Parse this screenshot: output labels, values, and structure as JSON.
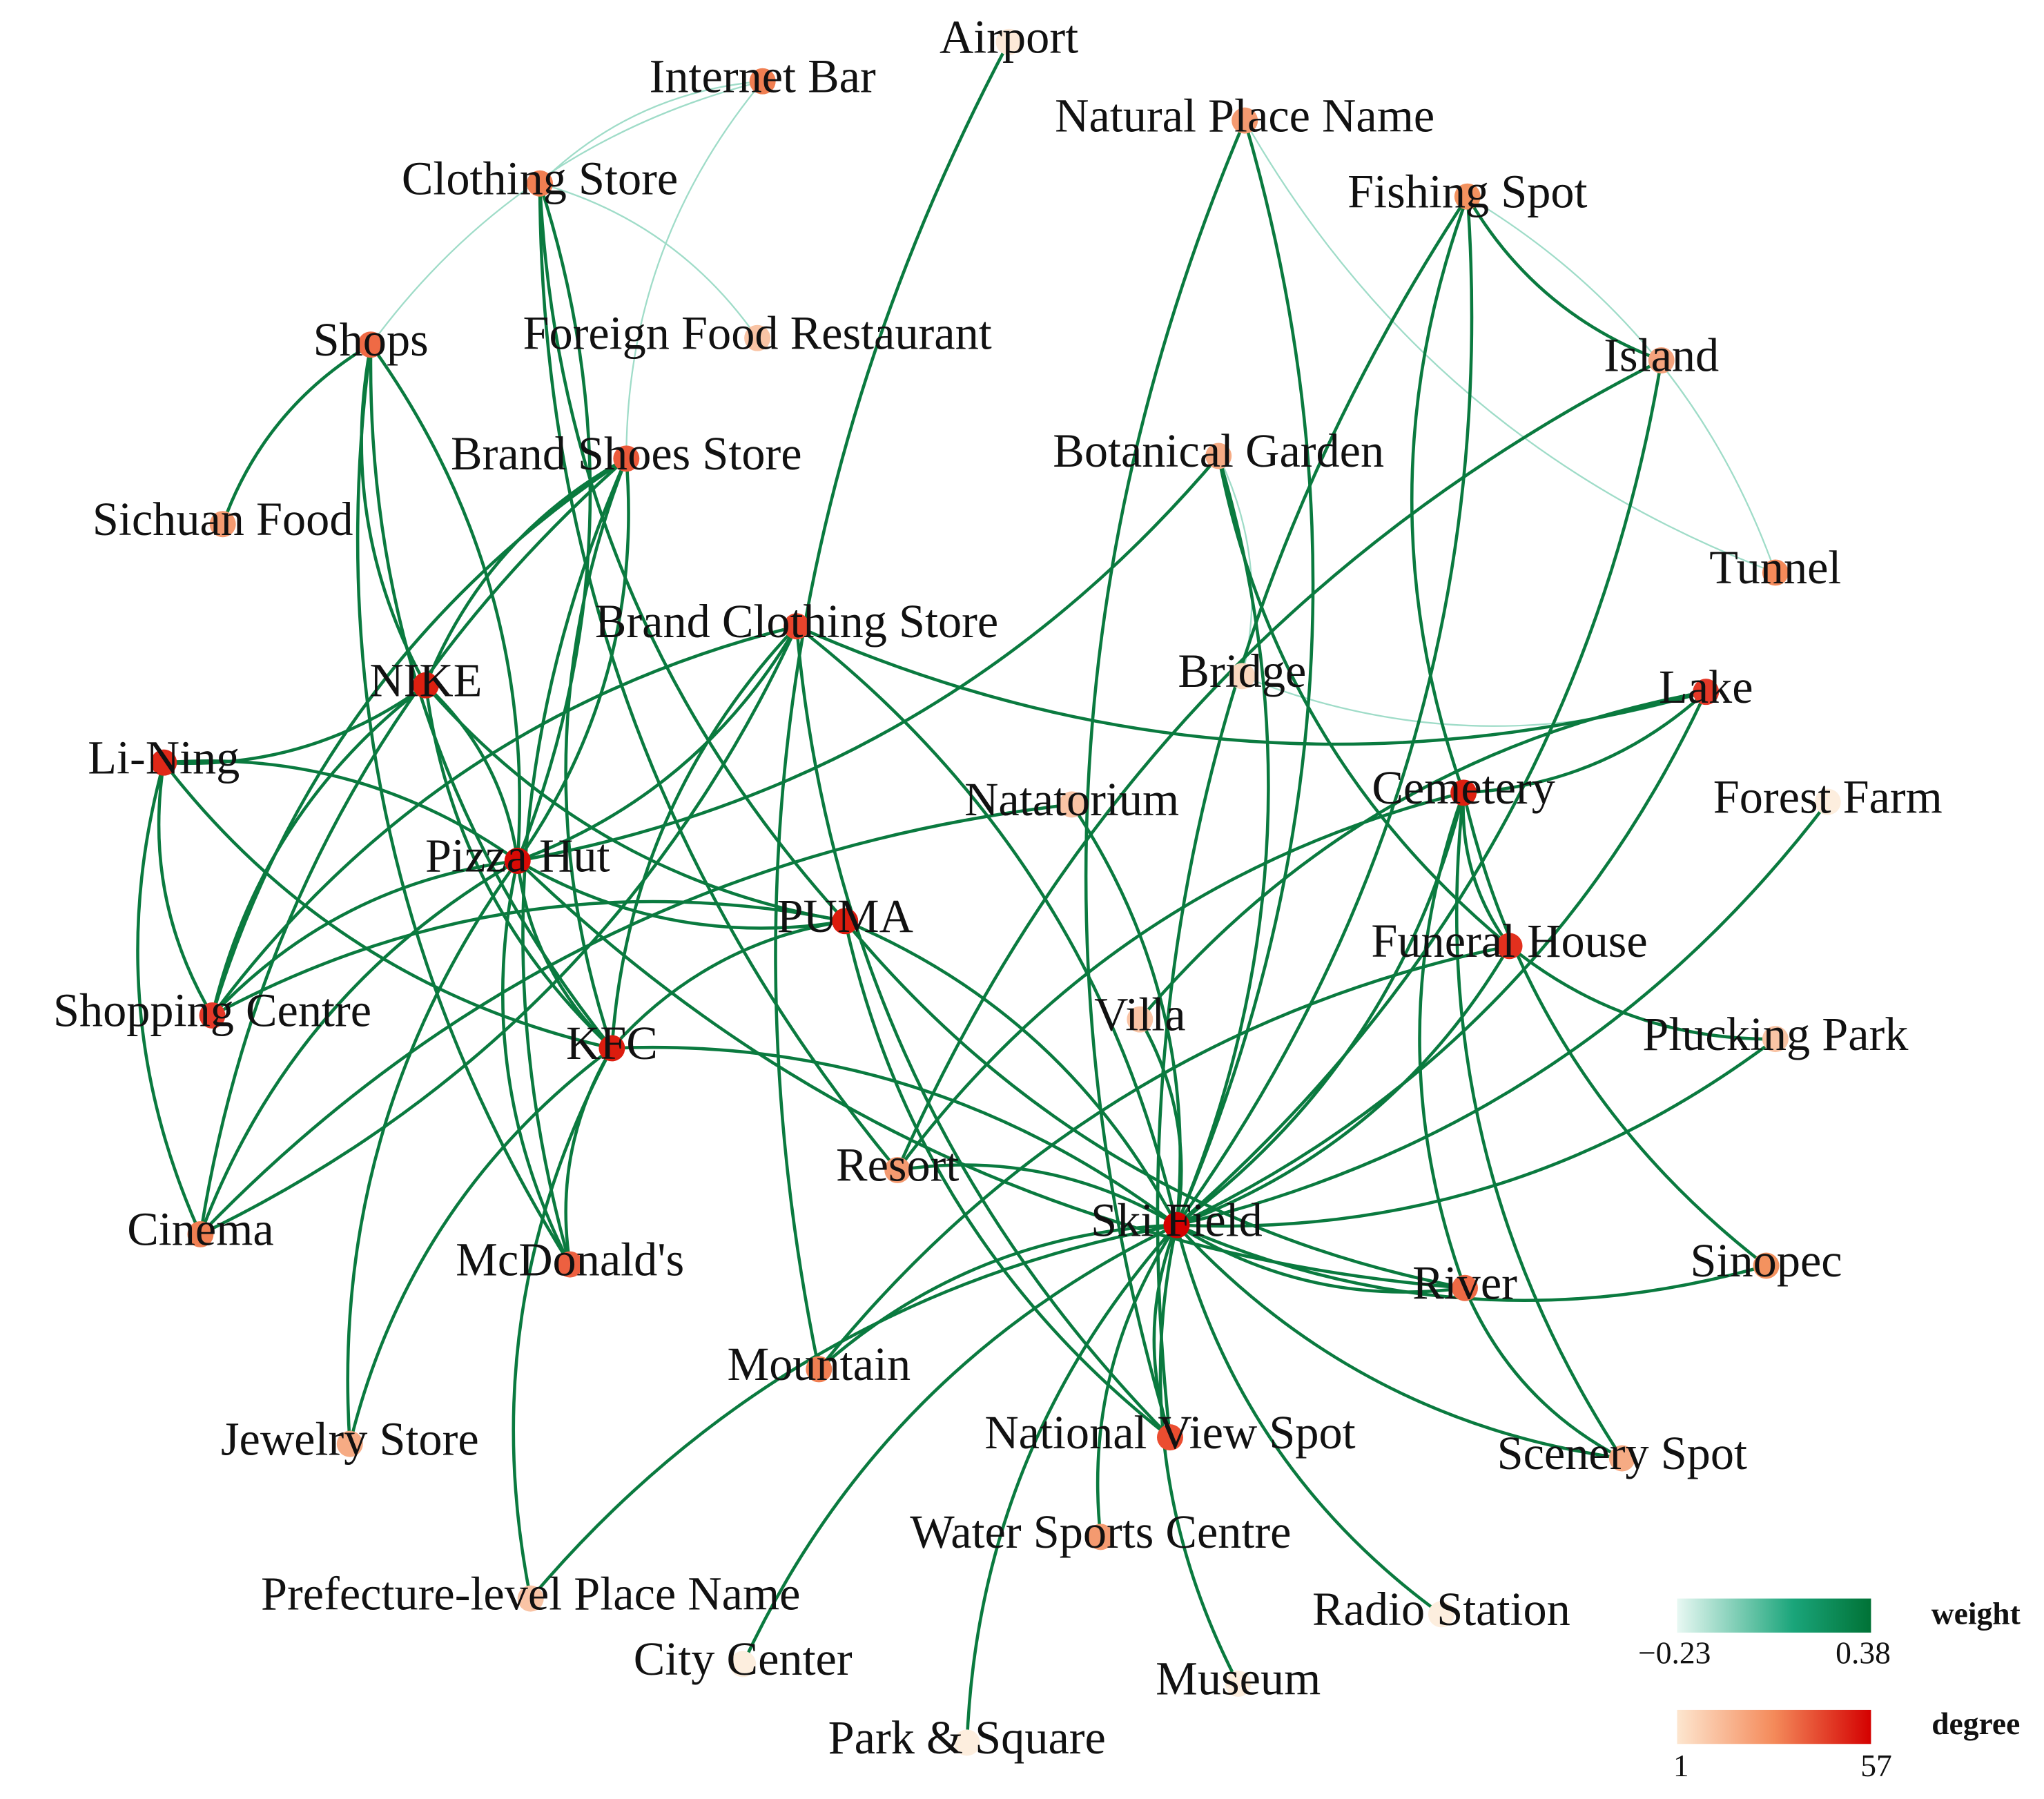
{
  "nodes": [
    "Airport",
    "Internet Bar",
    "Natural Place Name",
    "Clothing Store",
    "Fishing Spot",
    "Shops",
    "Foreign Food Restaurant",
    "Island",
    "Brand Shoes Store",
    "Botanical Garden",
    "Sichuan Food",
    "Tunnel",
    "Brand Clothing Store",
    "Bridge",
    "NIKE",
    "Lake",
    "Li-Ning",
    "Cemetery",
    "Forest Farm",
    "Natatorium",
    "Pizza Hut",
    "PUMA",
    "Funeral House",
    "Shopping Centre",
    "Villa",
    "Plucking Park",
    "KFC",
    "Resort",
    "Ski Field",
    "Cinema",
    "McDonald's",
    "River",
    "Sinopec",
    "Mountain",
    "National View Spot",
    "Jewelry Store",
    "Scenery Spot",
    "Water Sports Centre",
    "Prefecture-level Place Name",
    "Radio Station",
    "City Center",
    "Museum",
    "Park & Square"
  ],
  "legend": {
    "weight": {
      "title": "weight",
      "min": "−0.23",
      "max": "0.38"
    },
    "degree": {
      "title": "degree",
      "min": "1",
      "max": "57"
    }
  }
}
